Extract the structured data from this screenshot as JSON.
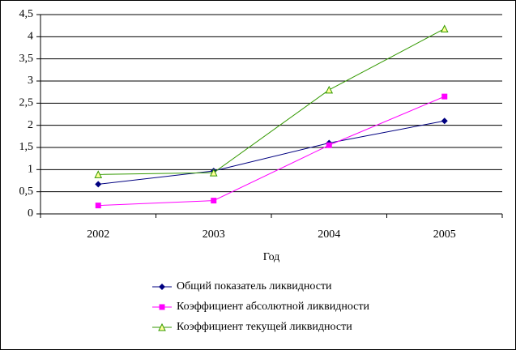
{
  "chart_data": {
    "type": "line",
    "x_label": "Год",
    "categories": [
      "2002",
      "2003",
      "2004",
      "2005"
    ],
    "series": [
      {
        "name": "Общий показатель ликвидности",
        "color": "#000080",
        "marker": "diamond",
        "values": [
          0.67,
          0.97,
          1.6,
          2.1
        ]
      },
      {
        "name": "Коэффициент абсолютной ликвидности",
        "color": "#ff00ff",
        "marker": "square",
        "values": [
          0.19,
          0.3,
          1.55,
          2.65
        ]
      },
      {
        "name": "Коэффициент текущей ликвидности",
        "color": "#339900",
        "marker": "triangle",
        "values": [
          0.89,
          0.93,
          2.8,
          4.18
        ]
      }
    ],
    "ylim": [
      0,
      4.5
    ],
    "yticks": [
      0,
      {
        "value": 0.5,
        "label": "0,5"
      },
      1,
      {
        "value": 1.5,
        "label": "1,5"
      },
      2,
      {
        "value": 2.5,
        "label": "2,5"
      },
      3,
      {
        "value": 3.5,
        "label": "3,5"
      },
      4,
      {
        "value": 4.5,
        "label": "4,5"
      }
    ],
    "grid": true,
    "legend": "bottom"
  }
}
